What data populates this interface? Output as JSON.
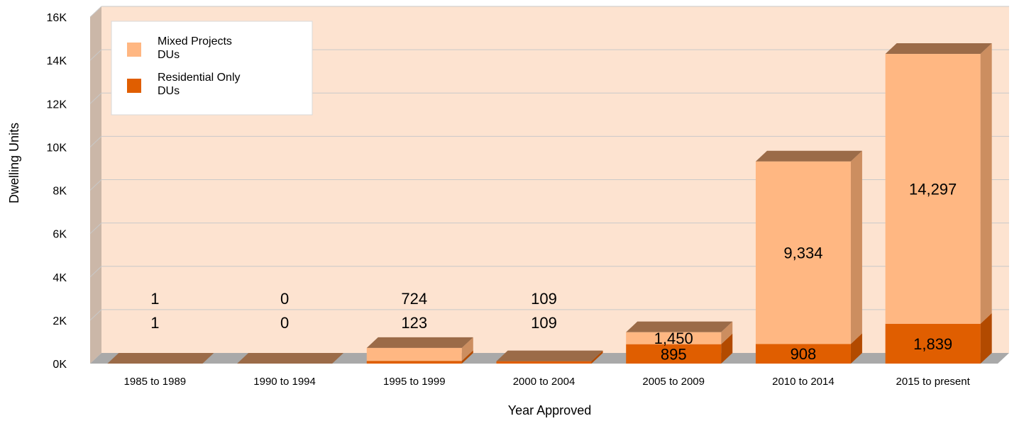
{
  "chart_data": {
    "type": "bar",
    "stacked": true,
    "three_d": true,
    "categories": [
      "1985 to 1989",
      "1990 to 1994",
      "1995 to 1999",
      "2000 to 2004",
      "2005 to 2009",
      "2010 to 2014",
      "2015 to present"
    ],
    "series": [
      {
        "name": "Residential Only DUs",
        "values": [
          1,
          0,
          123,
          109,
          895,
          908,
          1839
        ]
      },
      {
        "name": "Mixed Projects DUs",
        "values": [
          1,
          0,
          724,
          109,
          1450,
          9334,
          14297
        ]
      }
    ],
    "bar_top_labels": [
      [
        "1",
        "1"
      ],
      [
        "0",
        "0"
      ],
      [
        "724",
        "123"
      ],
      [
        "109",
        "109"
      ],
      null,
      null,
      null
    ],
    "inner_labels": [
      {
        "mixed": null,
        "residential": null
      },
      {
        "mixed": null,
        "residential": null
      },
      {
        "mixed": null,
        "residential": null
      },
      {
        "mixed": null,
        "residential": null
      },
      {
        "mixed": "1,450",
        "residential": "895"
      },
      {
        "mixed": "9,334",
        "residential": "908"
      },
      {
        "mixed": "14,297",
        "residential": "1,839"
      }
    ],
    "xlabel": "Year Approved",
    "ylabel": "Dwelling Units",
    "ylim": [
      0,
      16000
    ],
    "yticks": [
      0,
      2000,
      4000,
      6000,
      8000,
      10000,
      12000,
      14000,
      16000
    ],
    "ytick_labels": [
      "0K",
      "2K",
      "4K",
      "6K",
      "8K",
      "10K",
      "12K",
      "14K",
      "16K"
    ],
    "grid": true,
    "legend_position": "top-left",
    "legend_items": [
      {
        "lines": [
          "Mixed Projects",
          "DUs"
        ],
        "series": "Mixed Projects DUs"
      },
      {
        "lines": [
          "Residential Only",
          "DUs"
        ],
        "series": "Residential Only DUs"
      }
    ],
    "colors": {
      "mixed_front": "#FFB782",
      "mixed_side": "#CC8E60",
      "residential_front": "#E05E00",
      "residential_side": "#B24A00",
      "bar_top": "#9B6B48",
      "plot_background": "#FDE3D0",
      "back_wall_side": "#CBB7A8",
      "floor": "#A9A9A9",
      "gridline": "#C9C9C9"
    }
  }
}
